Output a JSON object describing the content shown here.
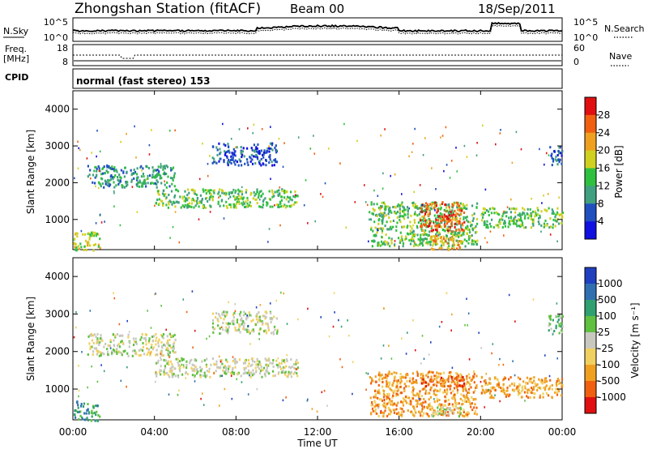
{
  "header": {
    "station": "Zhongshan Station (fitACF)",
    "beam": "Beam 00",
    "date": "18/Sep/2011"
  },
  "strip": {
    "nsky_label": "N.Sky",
    "nsky_ticks": [
      "10^5",
      "10^0"
    ],
    "nsearch_label": "N.Search",
    "nsearch_ticks": [
      "10^5",
      "10^0"
    ],
    "freq_label_1": "Freq.",
    "freq_label_2": "[MHz]",
    "freq_ticks": [
      "18",
      "8"
    ],
    "nave_label": "Nave",
    "nave_ticks": [
      "60",
      "0"
    ],
    "cpid_label": "CPID",
    "cpid_text": "normal (fast stereo) 153"
  },
  "axes": {
    "ylabel": "Slant Range [km]",
    "xlabel": "Time UT",
    "yticks": [
      1000,
      2000,
      3000,
      4000
    ],
    "xticks": [
      "00:00",
      "04:00",
      "08:00",
      "12:00",
      "16:00",
      "20:00",
      "00:00"
    ],
    "ylim": [
      180,
      4500
    ]
  },
  "chart_data": [
    {
      "type": "heatmap",
      "panel": "power",
      "ylabel": "Slant Range [km]",
      "colorbar_label": "Power [dB]",
      "colorbar_ticks": [
        "4",
        "8",
        "12",
        "16",
        "20",
        "24",
        "28"
      ],
      "colorbar_colors": [
        "#1010e0",
        "#2050c0",
        "#40a080",
        "#30c040",
        "#d0d020",
        "#f0a020",
        "#f06010",
        "#e01010"
      ],
      "regions": [
        {
          "t0": 0.0,
          "t1": 1.3,
          "r0": 180,
          "r1": 700,
          "level": 4
        },
        {
          "t0": 0.7,
          "t1": 5.0,
          "r0": 1900,
          "r1": 2500,
          "level": 2
        },
        {
          "t0": 4.0,
          "t1": 11.0,
          "r0": 1350,
          "r1": 1850,
          "level": 3
        },
        {
          "t0": 6.8,
          "t1": 10.0,
          "r0": 2500,
          "r1": 3100,
          "level": 1
        },
        {
          "t0": 14.5,
          "t1": 19.8,
          "r0": 300,
          "r1": 1500,
          "level": 3
        },
        {
          "t0": 17.0,
          "t1": 19.2,
          "r0": 700,
          "r1": 1500,
          "level": 6
        },
        {
          "t0": 17.5,
          "t1": 19.0,
          "r0": 200,
          "r1": 600,
          "level": 5
        },
        {
          "t0": 20.0,
          "t1": 24.0,
          "r0": 800,
          "r1": 1350,
          "level": 3
        },
        {
          "t0": 23.3,
          "t1": 24.0,
          "r0": 2500,
          "r1": 3000,
          "level": 1
        }
      ]
    },
    {
      "type": "heatmap",
      "panel": "velocity",
      "ylabel": "Slant Range [km]",
      "colorbar_label": "Velocity [m s⁻¹]",
      "colorbar_ticks": [
        "1000",
        "500",
        "100",
        "25",
        "-25",
        "-100",
        "-500",
        "-1000"
      ],
      "colorbar_colors": [
        "#2040c0",
        "#3070b0",
        "#30a070",
        "#60c040",
        "#c8c8c0",
        "#f0d060",
        "#f0a020",
        "#f06010",
        "#e01010"
      ],
      "regions": [
        {
          "t0": 0.0,
          "t1": 1.3,
          "r0": 180,
          "r1": 700,
          "level": 2
        },
        {
          "t0": 0.7,
          "t1": 5.0,
          "r0": 1900,
          "r1": 2500,
          "level": 4
        },
        {
          "t0": 4.0,
          "t1": 11.0,
          "r0": 1350,
          "r1": 1850,
          "level": 4
        },
        {
          "t0": 6.8,
          "t1": 10.0,
          "r0": 2500,
          "r1": 3100,
          "level": 4
        },
        {
          "t0": 14.5,
          "t1": 19.8,
          "r0": 300,
          "r1": 1500,
          "level": 6
        },
        {
          "t0": 17.0,
          "t1": 19.2,
          "r0": 1100,
          "r1": 1400,
          "level": 7
        },
        {
          "t0": 17.5,
          "t1": 19.0,
          "r0": 300,
          "r1": 600,
          "level": 4
        },
        {
          "t0": 20.0,
          "t1": 24.0,
          "r0": 800,
          "r1": 1350,
          "level": 6
        },
        {
          "t0": 23.3,
          "t1": 24.0,
          "r0": 2500,
          "r1": 3000,
          "level": 3
        }
      ]
    }
  ]
}
